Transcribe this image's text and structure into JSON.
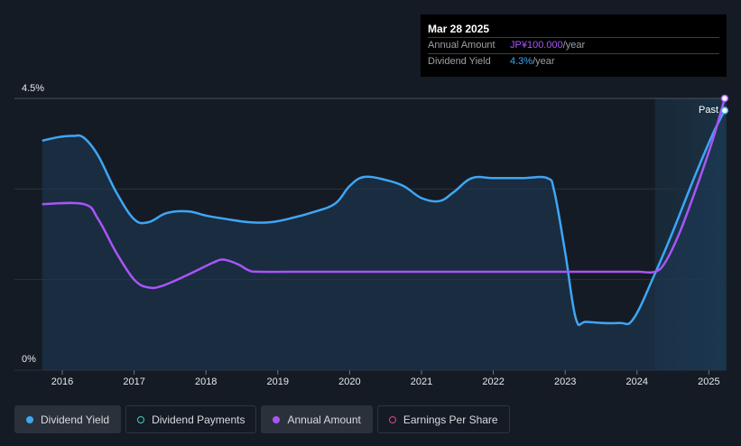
{
  "tooltip": {
    "date": "Mar 28 2025",
    "annual_amount_label": "Annual Amount",
    "annual_amount_value": "JP¥100.000",
    "annual_amount_unit": "/year",
    "yield_label": "Dividend Yield",
    "yield_value": "4.3%",
    "yield_unit": "/year"
  },
  "legend": [
    {
      "label": "Dividend Yield",
      "color": "#3ea6f5",
      "filled": true,
      "active": true
    },
    {
      "label": "Dividend Payments",
      "color": "#3fd0c0",
      "filled": false,
      "active": false
    },
    {
      "label": "Annual Amount",
      "color": "#a855f7",
      "filled": true,
      "active": true
    },
    {
      "label": "Earnings Per Share",
      "color": "#e0457b",
      "filled": false,
      "active": false
    }
  ],
  "colors": {
    "background": "#151b24",
    "yield_line": "#3ea6f5",
    "annual_line": "#a855f7",
    "grid": "#2a313b"
  },
  "chart_data": {
    "type": "line",
    "x_tick_labels": [
      "2016",
      "2017",
      "2018",
      "2019",
      "2020",
      "2021",
      "2022",
      "2023",
      "2024",
      "2025"
    ],
    "y_tick_labels": [
      "4.5%",
      "0%"
    ],
    "ylim": [
      0,
      4.5
    ],
    "past_label": "Past",
    "forecast_region_start": 2024.25,
    "series": [
      {
        "name": "Dividend Yield",
        "color": "#3ea6f5",
        "points": [
          [
            2015.72,
            3.8
          ],
          [
            2015.95,
            3.86
          ],
          [
            2016.15,
            3.88
          ],
          [
            2016.3,
            3.85
          ],
          [
            2016.5,
            3.55
          ],
          [
            2016.75,
            2.95
          ],
          [
            2017.0,
            2.5
          ],
          [
            2017.2,
            2.45
          ],
          [
            2017.45,
            2.6
          ],
          [
            2017.75,
            2.63
          ],
          [
            2018.0,
            2.56
          ],
          [
            2018.3,
            2.5
          ],
          [
            2018.6,
            2.45
          ],
          [
            2018.9,
            2.45
          ],
          [
            2019.2,
            2.52
          ],
          [
            2019.5,
            2.62
          ],
          [
            2019.8,
            2.76
          ],
          [
            2020.0,
            3.05
          ],
          [
            2020.2,
            3.2
          ],
          [
            2020.5,
            3.15
          ],
          [
            2020.75,
            3.05
          ],
          [
            2021.0,
            2.85
          ],
          [
            2021.25,
            2.8
          ],
          [
            2021.45,
            2.95
          ],
          [
            2021.7,
            3.18
          ],
          [
            2022.0,
            3.18
          ],
          [
            2022.4,
            3.18
          ],
          [
            2022.75,
            3.18
          ],
          [
            2022.85,
            2.95
          ],
          [
            2023.0,
            1.95
          ],
          [
            2023.15,
            0.85
          ],
          [
            2023.3,
            0.8
          ],
          [
            2023.75,
            0.78
          ],
          [
            2023.95,
            0.85
          ],
          [
            2024.25,
            1.6
          ],
          [
            2024.5,
            2.3
          ],
          [
            2024.8,
            3.2
          ],
          [
            2025.05,
            3.9
          ],
          [
            2025.22,
            4.3
          ]
        ]
      },
      {
        "name": "Annual Amount",
        "color": "#a855f7",
        "points": [
          [
            2015.72,
            2.75
          ],
          [
            2016.3,
            2.75
          ],
          [
            2016.5,
            2.5
          ],
          [
            2016.75,
            1.95
          ],
          [
            2017.0,
            1.5
          ],
          [
            2017.2,
            1.37
          ],
          [
            2017.4,
            1.4
          ],
          [
            2017.75,
            1.58
          ],
          [
            2018.1,
            1.78
          ],
          [
            2018.25,
            1.83
          ],
          [
            2018.45,
            1.75
          ],
          [
            2018.6,
            1.65
          ],
          [
            2018.75,
            1.63
          ],
          [
            2019.5,
            1.63
          ],
          [
            2020.5,
            1.63
          ],
          [
            2021.5,
            1.63
          ],
          [
            2022.5,
            1.63
          ],
          [
            2023.5,
            1.63
          ],
          [
            2024.0,
            1.63
          ],
          [
            2024.25,
            1.63
          ],
          [
            2024.4,
            1.8
          ],
          [
            2024.6,
            2.3
          ],
          [
            2024.85,
            3.1
          ],
          [
            2025.05,
            3.8
          ],
          [
            2025.22,
            4.5
          ]
        ]
      }
    ]
  }
}
